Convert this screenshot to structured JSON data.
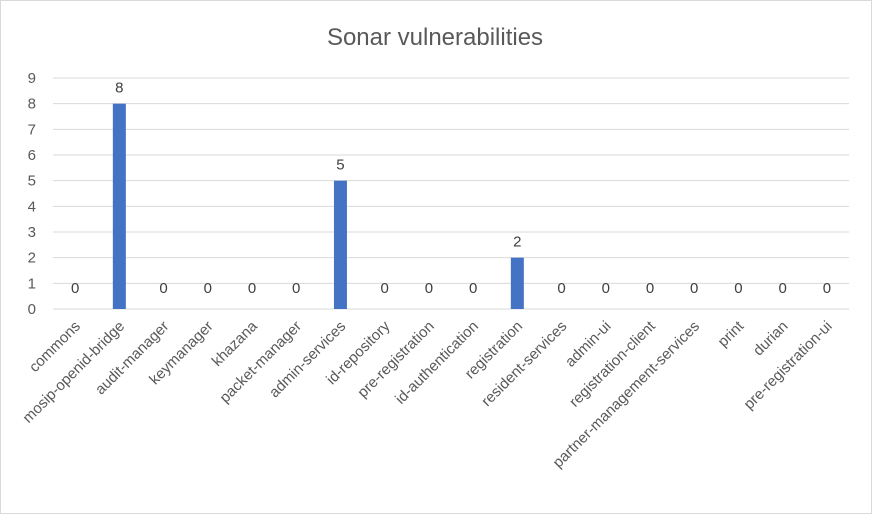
{
  "chart_data": {
    "type": "bar",
    "title": "Sonar vulnerabilities",
    "xlabel": "",
    "ylabel": "",
    "ylim": [
      0,
      9
    ],
    "yticks": [
      0,
      1,
      2,
      3,
      4,
      5,
      6,
      7,
      8,
      9
    ],
    "grid": true,
    "legend": "none",
    "data_labels": true,
    "bar_color": "#4472c4",
    "categories": [
      "commons",
      "mosip-openid-bridge",
      "audit-manager",
      "keymanager",
      "khazana",
      "packet-manager",
      "admin-services",
      "id-repository",
      "pre-registration",
      "id-authentication",
      "registration",
      "resident-services",
      "admin-ui",
      "registration-client",
      "partner-management-services",
      "print",
      "durian",
      "pre-registration-ui"
    ],
    "values": [
      0,
      8,
      0,
      0,
      0,
      0,
      5,
      0,
      0,
      0,
      2,
      0,
      0,
      0,
      0,
      0,
      0,
      0
    ]
  }
}
